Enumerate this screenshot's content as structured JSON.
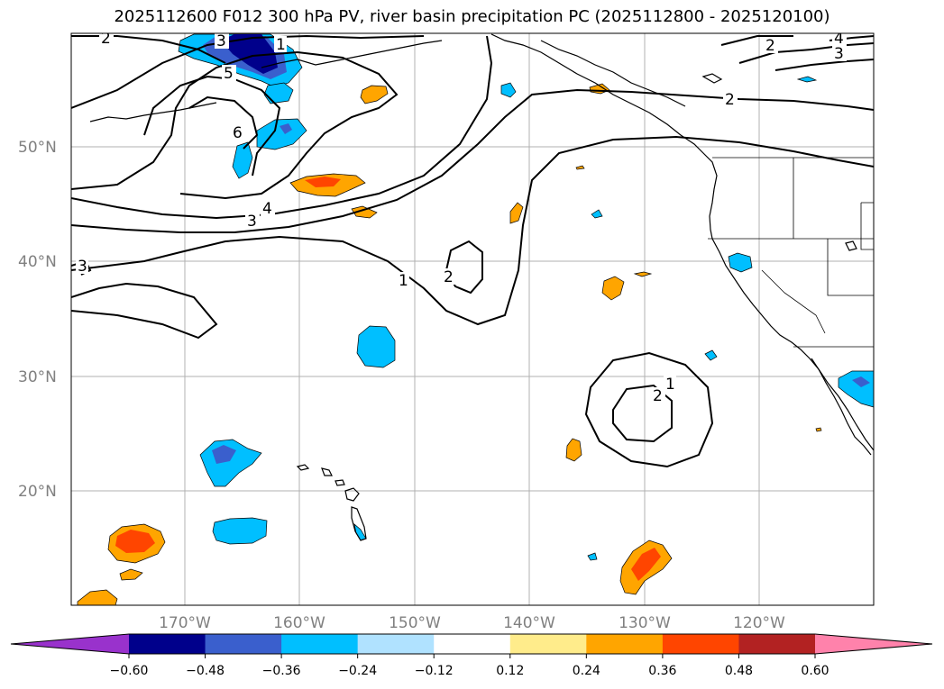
{
  "title": "2025112600 F012 300 hPa PV, river basin precipitation PC (2025112800 - 2025120100)",
  "lat_labels": [
    "50°N",
    "40°N",
    "30°N",
    "20°N"
  ],
  "lon_labels": [
    "170°W",
    "160°W",
    "150°W",
    "140°W",
    "130°W",
    "120°W"
  ],
  "colorbar": {
    "labels": [
      "−0.60",
      "−0.48",
      "−0.36",
      "−0.24",
      "−0.12",
      "0.12",
      "0.24",
      "0.36",
      "0.48",
      "0.60"
    ],
    "colors": [
      "#9932cc",
      "#00008b",
      "#3a5fcd",
      "#00bfff",
      "#b0e2ff",
      "#ffffff",
      "#ffec8b",
      "#ffa500",
      "#ff4500",
      "#b22222",
      "#ff82ab"
    ]
  },
  "pv_contour_labels": [
    "2",
    "3",
    "1",
    "5",
    "6",
    "4",
    "3",
    "3",
    "1",
    "2",
    "2",
    "1",
    "2",
    "2",
    "4",
    "3"
  ]
}
